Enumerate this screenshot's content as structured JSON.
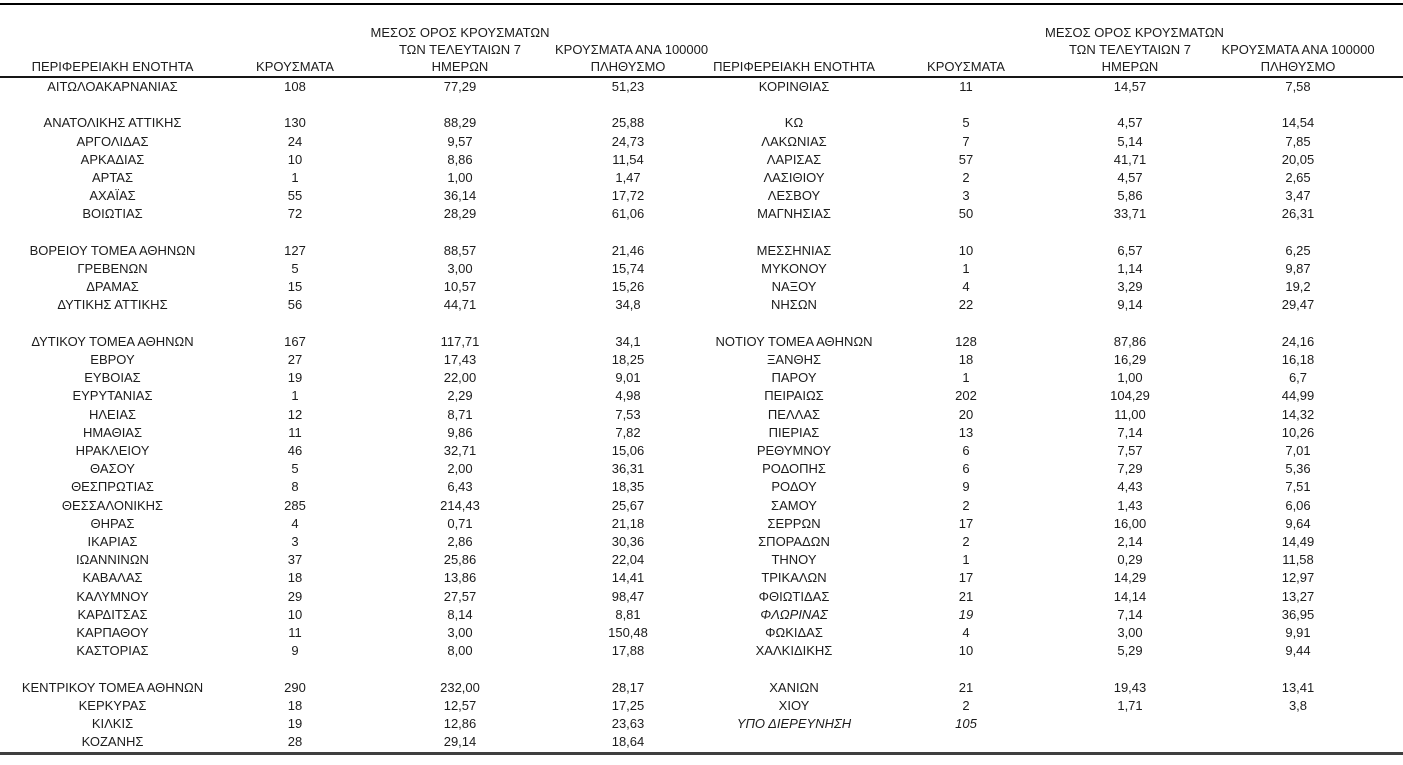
{
  "page": {
    "background": "#ffffff"
  },
  "colors": {
    "text": "#1c1c1c",
    "top_rule": "#000000",
    "header_rule": "#161616",
    "bottom_rule": "#3f3f3f"
  },
  "table": {
    "headers": {
      "region": "ΠΕΡΙΦΕΡΕΙΑΚΗ ΕΝΟΤΗΤΑ",
      "cases": "ΚΡΟΥΣΜΑΤΑ",
      "avg7_line1": "ΜΕΣΟΣ ΟΡΟΣ ΚΡΟΥΣΜΑΤΩΝ",
      "avg7_line2": "ΤΩΝ ΤΕΛΕΥΤΑΙΩΝ 7",
      "avg7_line3": "ΗΜΕΡΩΝ",
      "per100k_line1": "ΚΡΟΥΣΜΑΤΑ ΑΝΑ 100000",
      "per100k_line2": "ΠΛΗΘΥΣΜΟ"
    },
    "left_rows": [
      {
        "region": "ΑΙΤΩΛΟΑΚΑΡΝΑΝΙΑΣ",
        "cases": "108",
        "avg7": "77,29",
        "per100k": "51,23",
        "italic": false
      },
      null,
      {
        "region": "ΑΝΑΤΟΛΙΚΗΣ ΑΤΤΙΚΗΣ",
        "cases": "130",
        "avg7": "88,29",
        "per100k": "25,88",
        "italic": false
      },
      {
        "region": "ΑΡΓΟΛΙΔΑΣ",
        "cases": "24",
        "avg7": "9,57",
        "per100k": "24,73",
        "italic": false
      },
      {
        "region": "ΑΡΚΑΔΙΑΣ",
        "cases": "10",
        "avg7": "8,86",
        "per100k": "11,54",
        "italic": false
      },
      {
        "region": "ΑΡΤΑΣ",
        "cases": "1",
        "avg7": "1,00",
        "per100k": "1,47",
        "italic": false
      },
      {
        "region": "ΑΧΑΪΑΣ",
        "cases": "55",
        "avg7": "36,14",
        "per100k": "17,72",
        "italic": false
      },
      {
        "region": "ΒΟΙΩΤΙΑΣ",
        "cases": "72",
        "avg7": "28,29",
        "per100k": "61,06",
        "italic": false
      },
      null,
      {
        "region": "ΒΟΡΕΙΟΥ ΤΟΜΕΑ ΑΘΗΝΩΝ",
        "cases": "127",
        "avg7": "88,57",
        "per100k": "21,46",
        "italic": false
      },
      {
        "region": "ΓΡΕΒΕΝΩΝ",
        "cases": "5",
        "avg7": "3,00",
        "per100k": "15,74",
        "italic": false
      },
      {
        "region": "ΔΡΑΜΑΣ",
        "cases": "15",
        "avg7": "10,57",
        "per100k": "15,26",
        "italic": false
      },
      {
        "region": "ΔΥΤΙΚΗΣ ΑΤΤΙΚΗΣ",
        "cases": "56",
        "avg7": "44,71",
        "per100k": "34,8",
        "italic": false
      },
      null,
      {
        "region": "ΔΥΤΙΚΟΥ ΤΟΜΕΑ ΑΘΗΝΩΝ",
        "cases": "167",
        "avg7": "117,71",
        "per100k": "34,1",
        "italic": false
      },
      {
        "region": "ΕΒΡΟΥ",
        "cases": "27",
        "avg7": "17,43",
        "per100k": "18,25",
        "italic": false
      },
      {
        "region": "ΕΥΒΟΙΑΣ",
        "cases": "19",
        "avg7": "22,00",
        "per100k": "9,01",
        "italic": false
      },
      {
        "region": "ΕΥΡΥΤΑΝΙΑΣ",
        "cases": "1",
        "avg7": "2,29",
        "per100k": "4,98",
        "italic": false
      },
      {
        "region": "ΗΛΕΙΑΣ",
        "cases": "12",
        "avg7": "8,71",
        "per100k": "7,53",
        "italic": false
      },
      {
        "region": "ΗΜΑΘΙΑΣ",
        "cases": "11",
        "avg7": "9,86",
        "per100k": "7,82",
        "italic": false
      },
      {
        "region": "ΗΡΑΚΛΕΙΟΥ",
        "cases": "46",
        "avg7": "32,71",
        "per100k": "15,06",
        "italic": false
      },
      {
        "region": "ΘΑΣΟΥ",
        "cases": "5",
        "avg7": "2,00",
        "per100k": "36,31",
        "italic": false
      },
      {
        "region": "ΘΕΣΠΡΩΤΙΑΣ",
        "cases": "8",
        "avg7": "6,43",
        "per100k": "18,35",
        "italic": false
      },
      {
        "region": "ΘΕΣΣΑΛΟΝΙΚΗΣ",
        "cases": "285",
        "avg7": "214,43",
        "per100k": "25,67",
        "italic": false
      },
      {
        "region": "ΘΗΡΑΣ",
        "cases": "4",
        "avg7": "0,71",
        "per100k": "21,18",
        "italic": false
      },
      {
        "region": "ΙΚΑΡΙΑΣ",
        "cases": "3",
        "avg7": "2,86",
        "per100k": "30,36",
        "italic": false
      },
      {
        "region": "ΙΩΑΝΝΙΝΩΝ",
        "cases": "37",
        "avg7": "25,86",
        "per100k": "22,04",
        "italic": false
      },
      {
        "region": "ΚΑΒΑΛΑΣ",
        "cases": "18",
        "avg7": "13,86",
        "per100k": "14,41",
        "italic": false
      },
      {
        "region": "ΚΑΛΥΜΝΟΥ",
        "cases": "29",
        "avg7": "27,57",
        "per100k": "98,47",
        "italic": false
      },
      {
        "region": "ΚΑΡΔΙΤΣΑΣ",
        "cases": "10",
        "avg7": "8,14",
        "per100k": "8,81",
        "italic": false
      },
      {
        "region": "ΚΑΡΠΑΘΟΥ",
        "cases": "11",
        "avg7": "3,00",
        "per100k": "150,48",
        "italic": false
      },
      {
        "region": "ΚΑΣΤΟΡΙΑΣ",
        "cases": "9",
        "avg7": "8,00",
        "per100k": "17,88",
        "italic": false
      },
      null,
      {
        "region": "ΚΕΝΤΡΙΚΟΥ ΤΟΜΕΑ ΑΘΗΝΩΝ",
        "cases": "290",
        "avg7": "232,00",
        "per100k": "28,17",
        "italic": false
      },
      {
        "region": "ΚΕΡΚΥΡΑΣ",
        "cases": "18",
        "avg7": "12,57",
        "per100k": "17,25",
        "italic": false
      },
      {
        "region": "ΚΙΛΚΙΣ",
        "cases": "19",
        "avg7": "12,86",
        "per100k": "23,63",
        "italic": false
      },
      {
        "region": "ΚΟΖΑΝΗΣ",
        "cases": "28",
        "avg7": "29,14",
        "per100k": "18,64",
        "italic": false
      }
    ],
    "right_rows": [
      {
        "region": "ΚΟΡΙΝΘΙΑΣ",
        "cases": "11",
        "avg7": "14,57",
        "per100k": "7,58",
        "italic": false
      },
      null,
      {
        "region": "ΚΩ",
        "cases": "5",
        "avg7": "4,57",
        "per100k": "14,54",
        "italic": false
      },
      {
        "region": "ΛΑΚΩΝΙΑΣ",
        "cases": "7",
        "avg7": "5,14",
        "per100k": "7,85",
        "italic": false
      },
      {
        "region": "ΛΑΡΙΣΑΣ",
        "cases": "57",
        "avg7": "41,71",
        "per100k": "20,05",
        "italic": false
      },
      {
        "region": "ΛΑΣΙΘΙΟΥ",
        "cases": "2",
        "avg7": "4,57",
        "per100k": "2,65",
        "italic": false
      },
      {
        "region": "ΛΕΣΒΟΥ",
        "cases": "3",
        "avg7": "5,86",
        "per100k": "3,47",
        "italic": false
      },
      {
        "region": "ΜΑΓΝΗΣΙΑΣ",
        "cases": "50",
        "avg7": "33,71",
        "per100k": "26,31",
        "italic": false
      },
      null,
      {
        "region": "ΜΕΣΣΗΝΙΑΣ",
        "cases": "10",
        "avg7": "6,57",
        "per100k": "6,25",
        "italic": false
      },
      {
        "region": "ΜΥΚΟΝΟΥ",
        "cases": "1",
        "avg7": "1,14",
        "per100k": "9,87",
        "italic": false
      },
      {
        "region": "ΝΑΞΟΥ",
        "cases": "4",
        "avg7": "3,29",
        "per100k": "19,2",
        "italic": false
      },
      {
        "region": "ΝΗΣΩΝ",
        "cases": "22",
        "avg7": "9,14",
        "per100k": "29,47",
        "italic": false
      },
      null,
      {
        "region": "ΝΟΤΙΟΥ ΤΟΜΕΑ ΑΘΗΝΩΝ",
        "cases": "128",
        "avg7": "87,86",
        "per100k": "24,16",
        "italic": false
      },
      {
        "region": "ΞΑΝΘΗΣ",
        "cases": "18",
        "avg7": "16,29",
        "per100k": "16,18",
        "italic": false
      },
      {
        "region": "ΠΑΡΟΥ",
        "cases": "1",
        "avg7": "1,00",
        "per100k": "6,7",
        "italic": false
      },
      {
        "region": "ΠΕΙΡΑΙΩΣ",
        "cases": "202",
        "avg7": "104,29",
        "per100k": "44,99",
        "italic": false
      },
      {
        "region": "ΠΕΛΛΑΣ",
        "cases": "20",
        "avg7": "11,00",
        "per100k": "14,32",
        "italic": false
      },
      {
        "region": "ΠΙΕΡΙΑΣ",
        "cases": "13",
        "avg7": "7,14",
        "per100k": "10,26",
        "italic": false
      },
      {
        "region": "ΡΕΘΥΜΝΟΥ",
        "cases": "6",
        "avg7": "7,57",
        "per100k": "7,01",
        "italic": false
      },
      {
        "region": "ΡΟΔΟΠΗΣ",
        "cases": "6",
        "avg7": "7,29",
        "per100k": "5,36",
        "italic": false
      },
      {
        "region": "ΡΟΔΟΥ",
        "cases": "9",
        "avg7": "4,43",
        "per100k": "7,51",
        "italic": false
      },
      {
        "region": "ΣΑΜΟΥ",
        "cases": "2",
        "avg7": "1,43",
        "per100k": "6,06",
        "italic": false
      },
      {
        "region": "ΣΕΡΡΩΝ",
        "cases": "17",
        "avg7": "16,00",
        "per100k": "9,64",
        "italic": false
      },
      {
        "region": "ΣΠΟΡΑΔΩΝ",
        "cases": "2",
        "avg7": "2,14",
        "per100k": "14,49",
        "italic": false
      },
      {
        "region": "ΤΗΝΟΥ",
        "cases": "1",
        "avg7": "0,29",
        "per100k": "11,58",
        "italic": false
      },
      {
        "region": "ΤΡΙΚΑΛΩΝ",
        "cases": "17",
        "avg7": "14,29",
        "per100k": "12,97",
        "italic": false
      },
      {
        "region": "ΦΘΙΩΤΙΔΑΣ",
        "cases": "21",
        "avg7": "14,14",
        "per100k": "13,27",
        "italic": false
      },
      {
        "region": "ΦΛΩΡΙΝΑΣ",
        "cases": "19",
        "avg7": "7,14",
        "per100k": "36,95",
        "italic": true
      },
      {
        "region": "ΦΩΚΙΔΑΣ",
        "cases": "4",
        "avg7": "3,00",
        "per100k": "9,91",
        "italic": false
      },
      {
        "region": "ΧΑΛΚΙΔΙΚΗΣ",
        "cases": "10",
        "avg7": "5,29",
        "per100k": "9,44",
        "italic": false
      },
      null,
      {
        "region": "ΧΑΝΙΩΝ",
        "cases": "21",
        "avg7": "19,43",
        "per100k": "13,41",
        "italic": false
      },
      {
        "region": "ΧΙΟΥ",
        "cases": "2",
        "avg7": "1,71",
        "per100k": "3,8",
        "italic": false
      },
      {
        "region": "ΥΠΟ ΔΙΕΡΕΥΝΗΣΗ",
        "cases": "105",
        "avg7": "",
        "per100k": "",
        "italic": true
      },
      null
    ]
  }
}
